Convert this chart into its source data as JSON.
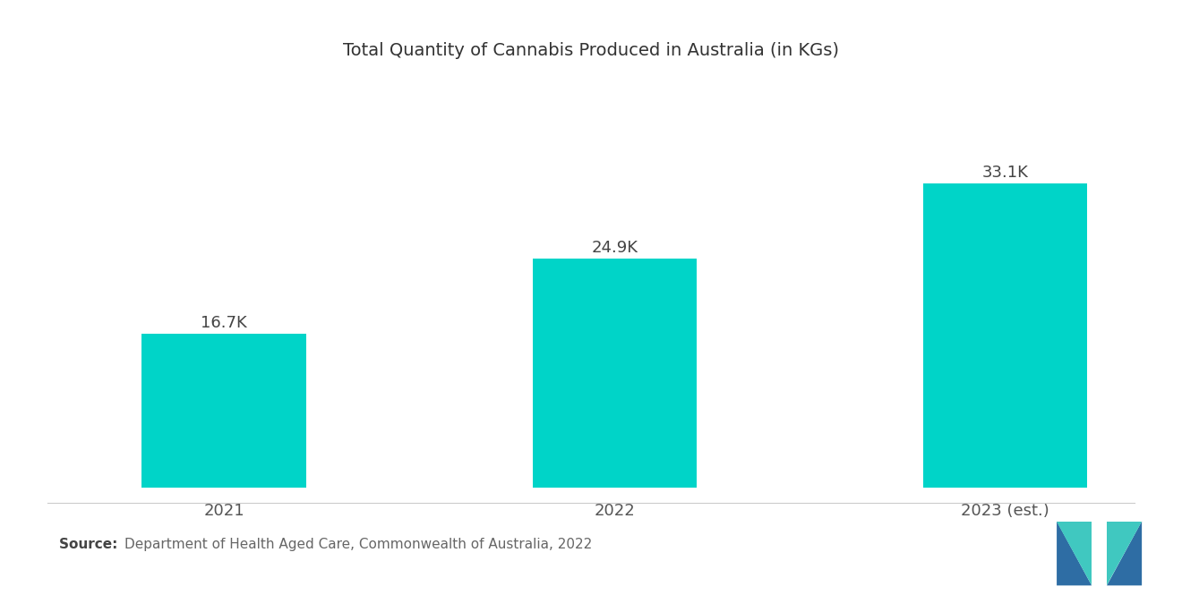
{
  "title": "Total Quantity of Cannabis Produced in Australia (in KGs)",
  "categories": [
    "2021",
    "2022",
    "2023 (est.)"
  ],
  "values": [
    16700,
    24900,
    33100
  ],
  "labels": [
    "16.7K",
    "24.9K",
    "33.1K"
  ],
  "bar_color": "#00D4C8",
  "background_color": "#ffffff",
  "source_text": "Department of Health Aged Care, Commonwealth of Australia, 2022",
  "source_label": "Source:  ",
  "title_fontsize": 14,
  "label_fontsize": 13,
  "tick_fontsize": 13,
  "source_fontsize": 11,
  "ylim": [
    0,
    42000
  ],
  "bar_width": 0.42,
  "logo_blue": "#2E6DA4",
  "logo_teal": "#40C8C0"
}
